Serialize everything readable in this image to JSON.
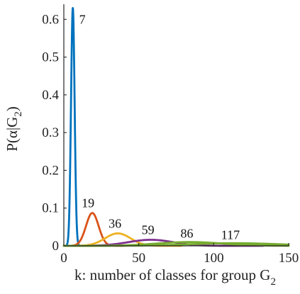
{
  "chart_data": {
    "type": "line",
    "title": "",
    "xlabel": "k: number of classes for group G",
    "xlabel_subscript": "2",
    "ylabel": "P(α|G",
    "ylabel_subscript": "2",
    "ylabel_suffix": ")",
    "xlim": [
      0,
      150
    ],
    "ylim": [
      0,
      0.64
    ],
    "xticks": [
      0,
      50,
      100,
      150
    ],
    "xtick_labels": [
      "0",
      "50",
      "100",
      "150"
    ],
    "yticks": [
      0,
      0.1,
      0.2,
      0.3,
      0.4,
      0.5,
      0.6
    ],
    "ytick_labels": [
      "0",
      "0.1",
      "0.2",
      "0.3",
      "0.4",
      "0.5",
      "0.6"
    ],
    "grid": false,
    "series": [
      {
        "label": "7",
        "peak_x": 6,
        "peak_y": 0.63,
        "sigma": 1.2,
        "color": "#0072BD"
      },
      {
        "label": "19",
        "peak_x": 19,
        "peak_y": 0.087,
        "sigma": 4.2,
        "color": "#D95319"
      },
      {
        "label": "36",
        "peak_x": 36,
        "peak_y": 0.033,
        "sigma": 8.5,
        "color": "#EDB120"
      },
      {
        "label": "59",
        "peak_x": 58,
        "peak_y": 0.016,
        "sigma": 15,
        "color": "#7E2F8E"
      },
      {
        "label": "86",
        "peak_x": 84,
        "peak_y": 0.01,
        "sigma": 22,
        "color": "#77AC30"
      },
      {
        "label": "117",
        "peak_x": 114,
        "peak_y": 0.007,
        "sigma": 30,
        "color": "#77AC30"
      }
    ]
  }
}
